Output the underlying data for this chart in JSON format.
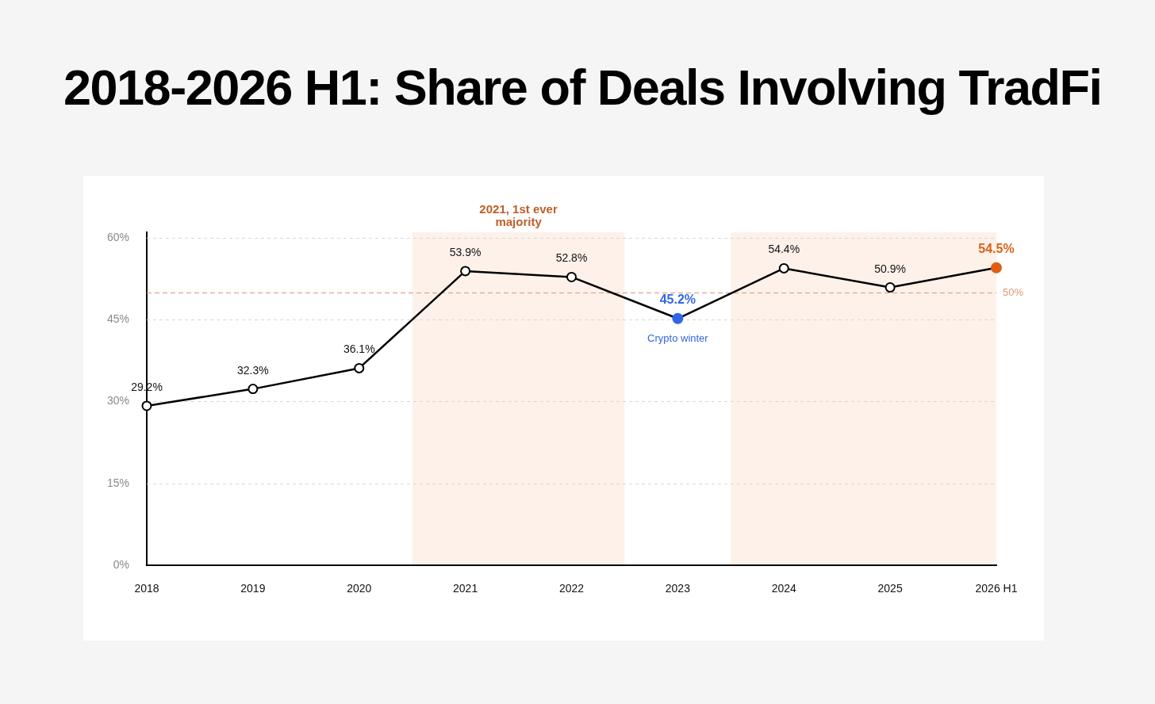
{
  "chart_data": {
    "type": "line",
    "title": "2018-2026 H1: Share of Deals Involving TradFi",
    "categories": [
      "2018",
      "2019",
      "2020",
      "2021",
      "2022",
      "2023",
      "2024",
      "2025",
      "2026 H1"
    ],
    "values": [
      29.2,
      32.3,
      36.1,
      53.9,
      52.8,
      45.2,
      54.4,
      50.9,
      54.5
    ],
    "color": "#000000",
    "colors": [
      "#ffffff",
      "#ffffff",
      "#ffffff",
      "#ffffff",
      "#ffffff",
      "#3366e6",
      "#ffffff",
      "#ffffff",
      "#df5f12"
    ],
    "value_labels": [
      "29.2%",
      "32.3%",
      "36.1%",
      "53.9%",
      "52.8%",
      "45.2%",
      "54.4%",
      "50.9%",
      "54.5%"
    ],
    "ylim": [
      0,
      61
    ],
    "yticks": [
      {
        "value": 0,
        "label": "0%"
      },
      {
        "value": 15,
        "label": "15%"
      },
      {
        "value": 30,
        "label": "30%"
      },
      {
        "value": 45,
        "label": "45%"
      },
      {
        "value": 60,
        "label": "60%"
      }
    ],
    "grid": "y",
    "marker": "circle",
    "line_style": "solid",
    "legend": false,
    "ref_lines": [
      {
        "axis": "y",
        "value": 50,
        "label": "50%",
        "color": "#d89b73",
        "line_style": "dashed"
      }
    ],
    "bands": [
      {
        "axis": "x",
        "from": "2021",
        "to": "2022",
        "label": "2021, 1st ever majority",
        "color": "#fdf1ea"
      },
      {
        "axis": "x",
        "from": "2024",
        "to": "2026 H1",
        "color": "#fdf1ea"
      }
    ],
    "annotations": [
      {
        "text": "Crypto winter",
        "x": "2023",
        "y": 45.2
      }
    ]
  }
}
